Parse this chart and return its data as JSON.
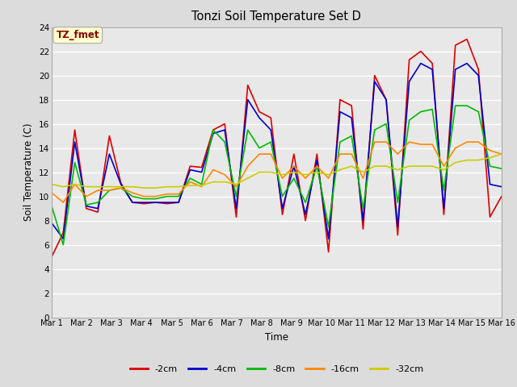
{
  "title": "Tonzi Soil Temperature Set D",
  "xlabel": "Time",
  "ylabel": "Soil Temperature (C)",
  "annotation": "TZ_fmet",
  "annotation_color": "#8B0000",
  "annotation_bg": "#FFFFCC",
  "ylim": [
    0,
    24
  ],
  "yticks": [
    0,
    2,
    4,
    6,
    8,
    10,
    12,
    14,
    16,
    18,
    20,
    22,
    24
  ],
  "x_labels": [
    "Mar 1",
    "Mar 2",
    "Mar 3",
    "Mar 4",
    "Mar 5",
    "Mar 6",
    "Mar 7",
    "Mar 8",
    "Mar 9",
    "Mar 10",
    "Mar 11",
    "Mar 12",
    "Mar 13",
    "Mar 14",
    "Mar 15",
    "Mar 16"
  ],
  "series": {
    "-2cm": [
      5.0,
      7.0,
      15.5,
      9.0,
      8.7,
      15.0,
      11.1,
      9.5,
      9.4,
      9.5,
      9.4,
      9.5,
      12.5,
      12.4,
      15.5,
      16.0,
      8.3,
      19.2,
      17.0,
      16.5,
      8.5,
      13.5,
      8.0,
      13.5,
      5.4,
      18.0,
      17.5,
      7.3,
      20.0,
      18.0,
      6.8,
      21.3,
      22.0,
      21.0,
      8.5,
      22.5,
      23.0,
      20.5,
      8.3,
      10.0
    ],
    "-4cm": [
      7.8,
      6.5,
      14.5,
      9.2,
      9.0,
      13.5,
      11.0,
      9.5,
      9.5,
      9.5,
      9.5,
      9.5,
      12.2,
      12.0,
      15.2,
      15.5,
      9.0,
      18.0,
      16.5,
      15.5,
      9.0,
      12.5,
      8.5,
      13.0,
      6.5,
      17.0,
      16.5,
      8.0,
      19.5,
      18.0,
      7.5,
      19.5,
      21.0,
      20.5,
      9.0,
      20.5,
      21.0,
      20.0,
      11.0,
      10.8
    ],
    "-8cm": [
      9.2,
      6.0,
      12.8,
      9.3,
      9.5,
      10.5,
      10.7,
      10.0,
      9.8,
      9.8,
      10.0,
      10.0,
      11.5,
      11.0,
      15.5,
      14.5,
      10.0,
      15.5,
      14.0,
      14.5,
      10.0,
      11.5,
      9.5,
      12.5,
      7.5,
      14.5,
      15.0,
      9.0,
      15.5,
      16.0,
      9.5,
      16.3,
      17.0,
      17.2,
      10.5,
      17.5,
      17.5,
      17.0,
      12.5,
      12.3
    ],
    "-16cm": [
      10.3,
      9.5,
      11.0,
      10.0,
      10.5,
      10.5,
      10.7,
      10.3,
      10.0,
      10.0,
      10.2,
      10.2,
      11.2,
      10.8,
      12.2,
      11.8,
      10.8,
      12.5,
      13.5,
      13.5,
      11.5,
      12.5,
      11.5,
      12.5,
      11.5,
      13.5,
      13.5,
      11.5,
      14.5,
      14.5,
      13.5,
      14.5,
      14.3,
      14.3,
      12.5,
      14.0,
      14.5,
      14.5,
      13.8,
      13.5
    ],
    "-32cm": [
      11.0,
      10.8,
      11.0,
      10.8,
      10.8,
      10.8,
      10.8,
      10.8,
      10.7,
      10.7,
      10.8,
      10.8,
      10.9,
      10.9,
      11.2,
      11.2,
      11.0,
      11.5,
      12.0,
      12.0,
      11.8,
      12.0,
      11.8,
      12.0,
      11.8,
      12.2,
      12.5,
      12.0,
      12.5,
      12.5,
      12.2,
      12.5,
      12.5,
      12.5,
      12.2,
      12.8,
      13.0,
      13.0,
      13.2,
      13.5
    ]
  },
  "colors": {
    "-2cm": "#DD0000",
    "-4cm": "#0000CC",
    "-8cm": "#00BB00",
    "-16cm": "#FF8800",
    "-32cm": "#CCCC00"
  },
  "fig_bg": "#DCDCDC",
  "plot_bg": "#E8E8E8",
  "grid_color": "#FFFFFF"
}
